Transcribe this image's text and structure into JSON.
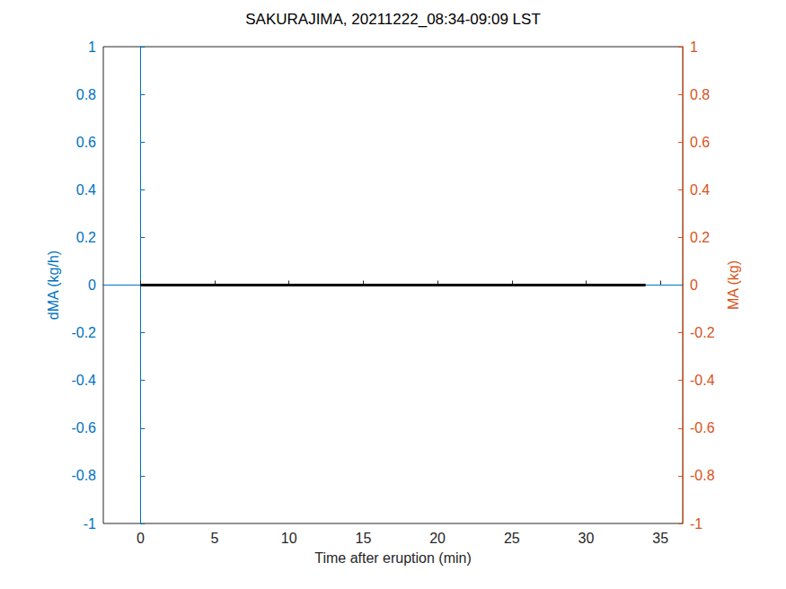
{
  "chart_data": {
    "type": "line",
    "title": "SAKURAJIMA, 20211222_08:34-09:09 LST",
    "x_label": "Time after eruption (min)",
    "y_label": "dMA (kg/h)",
    "y2_label": "MA (kg)",
    "xlim": [
      -2.5,
      36.5
    ],
    "xticks": [
      0,
      5,
      10,
      15,
      20,
      25,
      30,
      35
    ],
    "ylim": [
      -1,
      1
    ],
    "yticks": [
      -1,
      -0.8,
      -0.6,
      -0.4,
      -0.2,
      0,
      0.2,
      0.4,
      0.6,
      0.8,
      1
    ],
    "y2lim": [
      -1,
      1
    ],
    "y2ticks": [
      -1,
      -0.8,
      -0.6,
      -0.4,
      -0.2,
      0,
      0.2,
      0.4,
      0.6,
      0.8,
      1
    ],
    "y_color": "#0072bd",
    "y2_color": "#d95319",
    "grid": false,
    "series": [
      {
        "color": "#0072bd",
        "x": [
          -2.5,
          36.5
        ],
        "values": [
          0,
          0
        ]
      },
      {
        "color": "#000000",
        "axis": "y2",
        "x": [
          0,
          34
        ],
        "values": [
          0,
          0
        ]
      }
    ]
  }
}
